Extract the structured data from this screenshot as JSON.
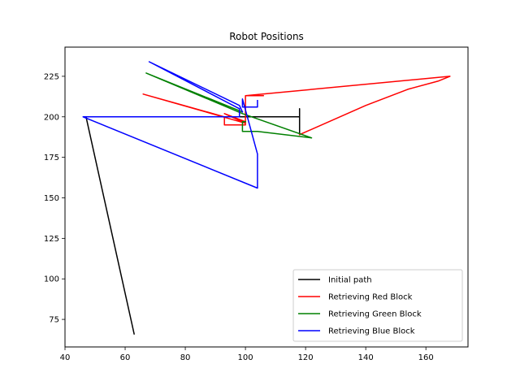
{
  "chart_data": {
    "type": "line",
    "title": "Robot Positions",
    "xlabel": "",
    "ylabel": "",
    "xlim": [
      40,
      174
    ],
    "ylim": [
      58,
      243
    ],
    "xticks": [
      40,
      60,
      80,
      100,
      120,
      140,
      160
    ],
    "yticks": [
      75,
      100,
      125,
      150,
      175,
      200,
      225
    ],
    "grid": false,
    "legend": {
      "placement": "lower-right",
      "entries": [
        "Initial path",
        "Retrieving Red Block",
        "Retrieving Green Block",
        "Retrieving Blue Block"
      ]
    },
    "series": [
      {
        "name": "Initial path",
        "color": "#000000",
        "points": [
          [
            63,
            66
          ],
          [
            47,
            200
          ],
          [
            118,
            200
          ],
          [
            118,
            205
          ],
          [
            118,
            189
          ]
        ]
      },
      {
        "name": "Retrieving Red Block",
        "color": "#ff0000",
        "points": [
          [
            118,
            189
          ],
          [
            140,
            207
          ],
          [
            154,
            217
          ],
          [
            164,
            222
          ],
          [
            168,
            225
          ],
          [
            100,
            213
          ],
          [
            106,
            213
          ],
          [
            100,
            213
          ],
          [
            100,
            195
          ],
          [
            93,
            195
          ],
          [
            93,
            200
          ],
          [
            66,
            214
          ],
          [
            100,
            196
          ],
          [
            93,
            202
          ],
          [
            100,
            197
          ]
        ]
      },
      {
        "name": "Retrieving Green Block",
        "color": "#008000",
        "points": [
          [
            100,
            197
          ],
          [
            99,
            197
          ],
          [
            99,
            191
          ],
          [
            104,
            191
          ],
          [
            122,
            187
          ],
          [
            99,
            202
          ],
          [
            67,
            227
          ],
          [
            99,
            203
          ]
        ]
      },
      {
        "name": "Retrieving Blue Block",
        "color": "#0000ff",
        "points": [
          [
            99,
            203
          ],
          [
            98,
            207
          ],
          [
            68,
            234
          ],
          [
            98,
            205
          ],
          [
            98,
            200
          ],
          [
            46,
            200
          ],
          [
            104,
            156
          ],
          [
            104,
            177
          ],
          [
            99,
            211
          ],
          [
            99,
            206
          ],
          [
            104,
            206
          ],
          [
            104,
            210
          ]
        ]
      }
    ]
  }
}
